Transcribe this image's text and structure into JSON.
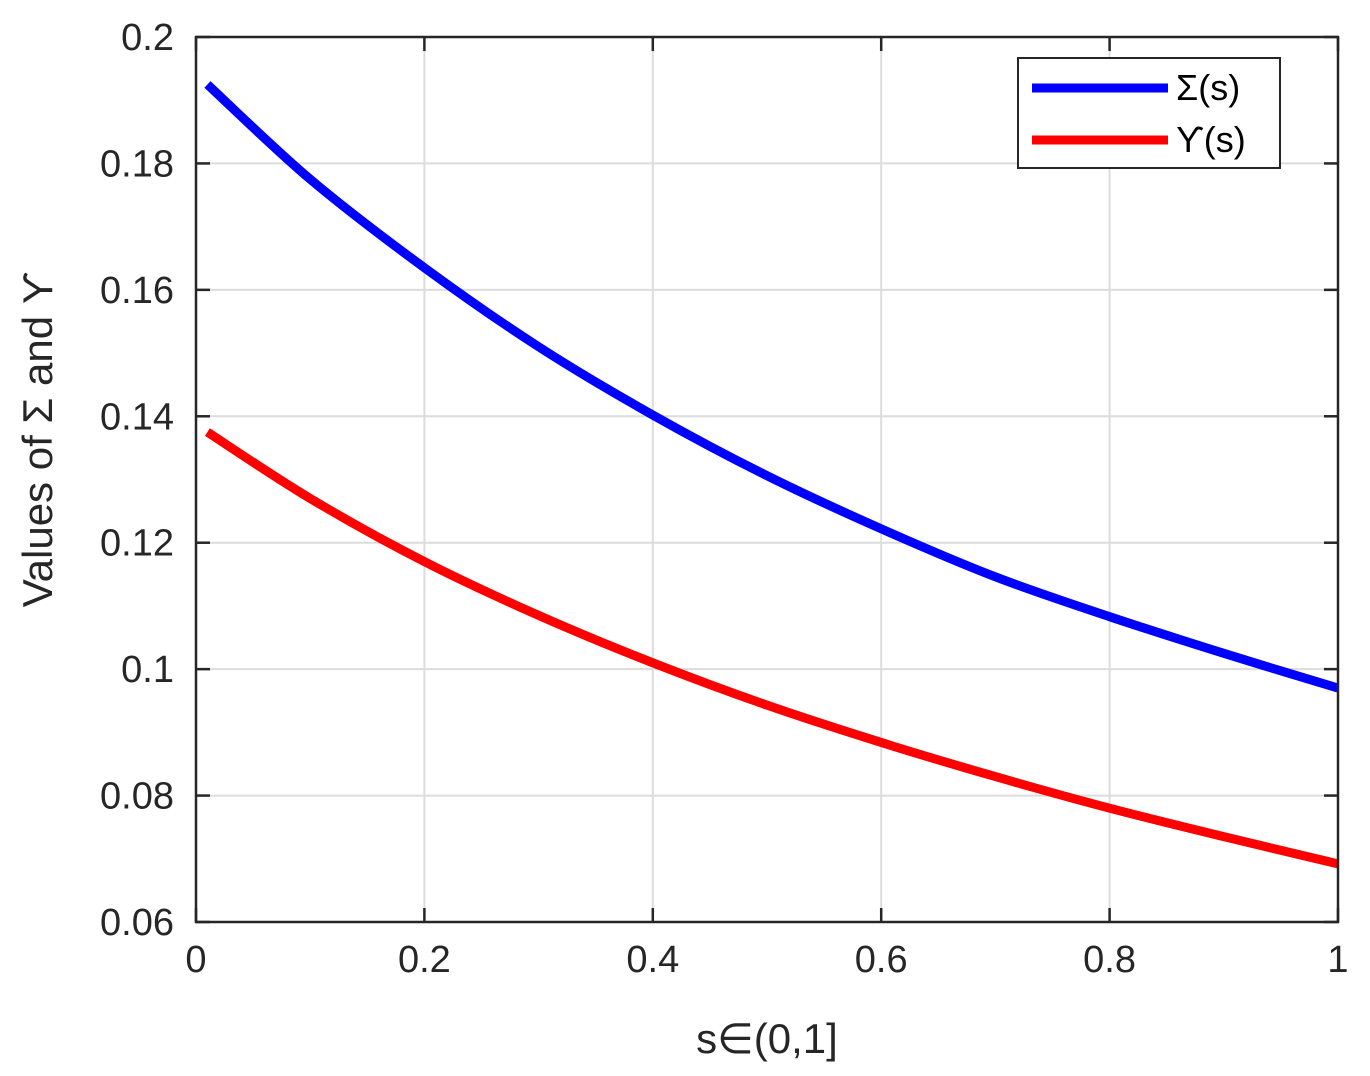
{
  "chart_data": {
    "type": "line",
    "xlabel": "s∈(0,1]",
    "ylabel": "Values of  Σ and  ϒ",
    "xlim": [
      0,
      1
    ],
    "ylim": [
      0.06,
      0.2
    ],
    "x_ticks": [
      0,
      0.2,
      0.4,
      0.6,
      0.8,
      1
    ],
    "x_tick_labels": [
      "0",
      "0.2",
      "0.4",
      "0.6",
      "0.8",
      "1"
    ],
    "y_ticks": [
      0.06,
      0.08,
      0.1,
      0.12,
      0.14,
      0.16,
      0.18,
      0.2
    ],
    "y_tick_labels": [
      "0.06",
      "0.08",
      "0.1",
      "0.12",
      "0.14",
      "0.16",
      "0.18",
      "0.2"
    ],
    "grid": true,
    "legend_position": "top-right",
    "series": [
      {
        "name": "Σ(s)",
        "color": "#0000ff",
        "x": [
          0.01,
          0.1,
          0.2,
          0.3,
          0.4,
          0.5,
          0.6,
          0.7,
          0.8,
          0.9,
          1.0
        ],
        "y": [
          0.1925,
          0.1775,
          0.1635,
          0.151,
          0.1402,
          0.1306,
          0.1222,
          0.1146,
          0.1083,
          0.1025,
          0.097
        ]
      },
      {
        "name": "ϒ(s)",
        "color": "#ff0000",
        "x": [
          0.01,
          0.1,
          0.2,
          0.3,
          0.4,
          0.5,
          0.6,
          0.7,
          0.8,
          0.9,
          1.0
        ],
        "y": [
          0.1375,
          0.127,
          0.117,
          0.1085,
          0.101,
          0.0943,
          0.0884,
          0.083,
          0.078,
          0.0735,
          0.0692
        ]
      }
    ]
  }
}
